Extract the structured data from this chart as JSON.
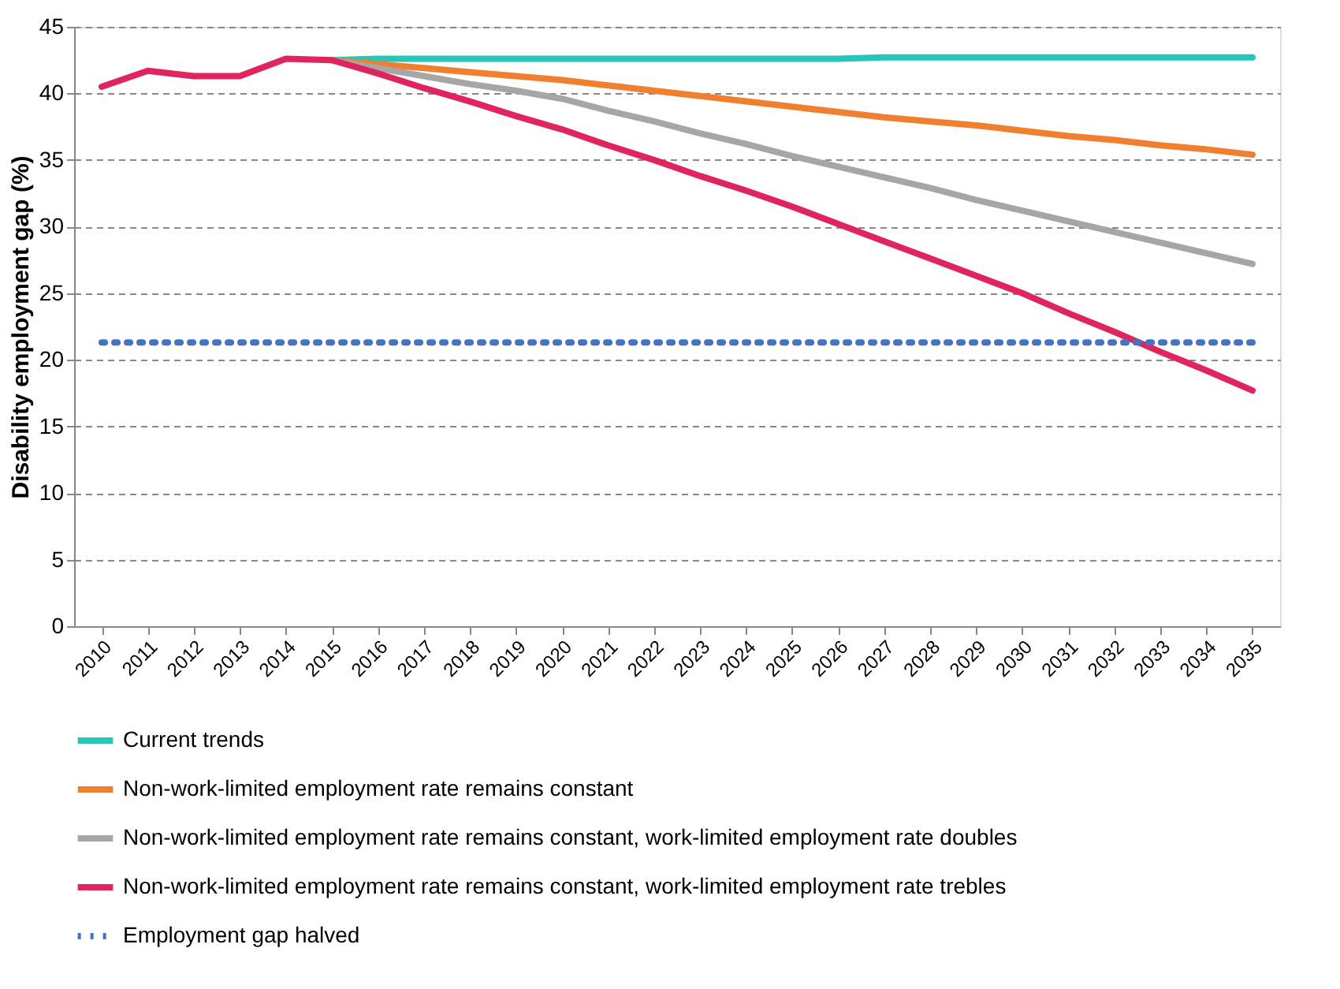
{
  "chart_data": {
    "type": "line",
    "ylabel": "Disability employment gap (%)",
    "categories": [
      "2010",
      "2011",
      "2012",
      "2013",
      "2014",
      "2015",
      "2016",
      "2017",
      "2018",
      "2019",
      "2020",
      "2021",
      "2022",
      "2023",
      "2024",
      "2025",
      "2026",
      "2027",
      "2028",
      "2029",
      "2030",
      "2031",
      "2032",
      "2033",
      "2034",
      "2035"
    ],
    "series": [
      {
        "name": "Current trends",
        "color": "#26c6b8",
        "line_style": "solid",
        "values": [
          null,
          null,
          null,
          null,
          null,
          42.5,
          42.6,
          42.6,
          42.6,
          42.6,
          42.6,
          42.6,
          42.6,
          42.6,
          42.6,
          42.6,
          42.6,
          42.7,
          42.7,
          42.7,
          42.7,
          42.7,
          42.7,
          42.7,
          42.7,
          42.7
        ]
      },
      {
        "name": "Non-work-limited employment rate remains constant",
        "color": "#f07f2f",
        "line_style": "solid",
        "values": [
          null,
          null,
          null,
          null,
          null,
          42.5,
          42.2,
          41.9,
          41.6,
          41.3,
          41.0,
          40.6,
          40.2,
          39.8,
          39.4,
          39.0,
          38.6,
          38.2,
          37.9,
          37.6,
          37.2,
          36.8,
          36.5,
          36.1,
          35.8,
          35.4
        ]
      },
      {
        "name": "Non-work-limited employment rate remains constant, work-limited employment rate doubles",
        "color": "#a6a6a6",
        "line_style": "solid",
        "values": [
          null,
          null,
          null,
          null,
          null,
          42.5,
          41.9,
          41.3,
          40.7,
          40.2,
          39.6,
          38.7,
          37.9,
          37.0,
          36.2,
          35.3,
          34.5,
          33.7,
          32.9,
          32.0,
          31.2,
          30.4,
          29.6,
          28.8,
          28.0,
          27.2
        ]
      },
      {
        "name": "Non-work-limited employment rate remains constant, work-limited employment rate trebles",
        "color": "#e0245e",
        "line_style": "solid",
        "values": [
          40.5,
          41.7,
          41.3,
          41.3,
          42.6,
          42.5,
          41.5,
          40.4,
          39.4,
          38.3,
          37.3,
          36.1,
          35.0,
          33.8,
          32.7,
          31.5,
          30.2,
          28.9,
          27.6,
          26.3,
          25.0,
          23.5,
          22.1,
          20.6,
          19.2,
          17.7
        ]
      },
      {
        "name": "Employment gap halved",
        "color": "#4472c4",
        "line_style": "dotted",
        "values": [
          21.3,
          21.3,
          21.3,
          21.3,
          21.3,
          21.3,
          21.3,
          21.3,
          21.3,
          21.3,
          21.3,
          21.3,
          21.3,
          21.3,
          21.3,
          21.3,
          21.3,
          21.3,
          21.3,
          21.3,
          21.3,
          21.3,
          21.3,
          21.3,
          21.3,
          21.3
        ]
      }
    ],
    "ylim": [
      0,
      45
    ],
    "yticks": [
      0,
      5,
      10,
      15,
      20,
      25,
      30,
      35,
      40,
      45
    ],
    "grid": "y",
    "legend": "bottom"
  }
}
